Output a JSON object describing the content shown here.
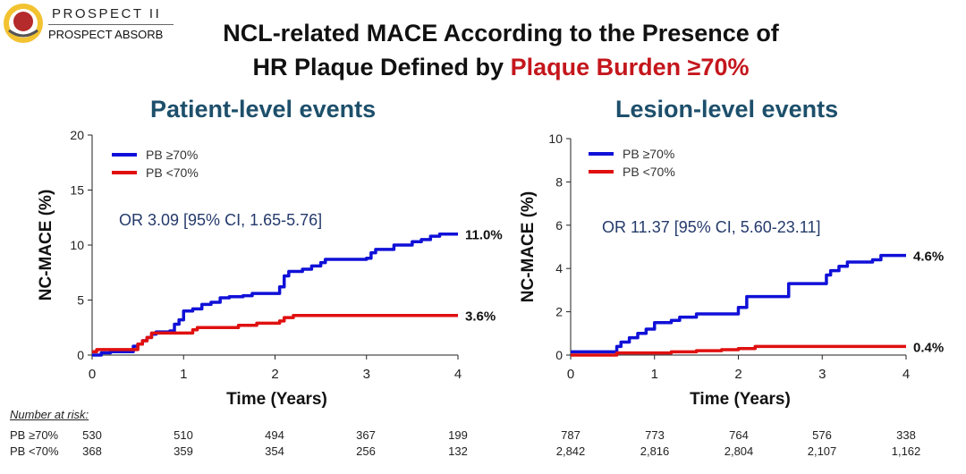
{
  "header": {
    "logo_line1": "PROSPECT II",
    "logo_line2": "PROSPECT ABSORB",
    "title_line1": "NCL-related MACE According to the Presence of",
    "title_line2_prefix": "HR Plaque Defined by ",
    "title_line2_highlight": "Plaque Burden ≥70%"
  },
  "colors": {
    "series_high": "#1010d8",
    "series_low": "#e01010",
    "panel_title": "#1d4f6b",
    "highlight": "#c4161c"
  },
  "chart_data": [
    {
      "type": "line",
      "panel_title": "Patient-level events",
      "xlabel": "Time (Years)",
      "ylabel": "NC-MACE (%)",
      "xlim": [
        0,
        4
      ],
      "ylim": [
        0,
        20
      ],
      "xticks": [
        "0",
        "1",
        "2",
        "3",
        "4"
      ],
      "yticks": [
        "0",
        "5",
        "10",
        "15",
        "20"
      ],
      "annotation": "OR 3.09 [95% CI, 1.65-5.76]",
      "legend_position": "top-left",
      "series": [
        {
          "name": "PB ≥70%",
          "end_label": "11.0%",
          "points": [
            [
              0,
              0
            ],
            [
              0.1,
              0.2
            ],
            [
              0.2,
              0.3
            ],
            [
              0.4,
              0.3
            ],
            [
              0.45,
              0.8
            ],
            [
              0.5,
              1.0
            ],
            [
              0.55,
              1.3
            ],
            [
              0.6,
              1.6
            ],
            [
              0.65,
              1.9
            ],
            [
              0.7,
              2.1
            ],
            [
              0.85,
              2.2
            ],
            [
              0.9,
              2.8
            ],
            [
              0.95,
              3.2
            ],
            [
              1.0,
              4.0
            ],
            [
              1.1,
              4.2
            ],
            [
              1.2,
              4.6
            ],
            [
              1.3,
              4.8
            ],
            [
              1.4,
              5.2
            ],
            [
              1.5,
              5.3
            ],
            [
              1.65,
              5.4
            ],
            [
              1.75,
              5.6
            ],
            [
              2.0,
              5.6
            ],
            [
              2.05,
              6.2
            ],
            [
              2.1,
              7.2
            ],
            [
              2.15,
              7.6
            ],
            [
              2.3,
              7.8
            ],
            [
              2.4,
              8.1
            ],
            [
              2.5,
              8.4
            ],
            [
              2.55,
              8.7
            ],
            [
              2.8,
              8.7
            ],
            [
              3.0,
              8.8
            ],
            [
              3.05,
              9.3
            ],
            [
              3.1,
              9.6
            ],
            [
              3.3,
              10.0
            ],
            [
              3.5,
              10.3
            ],
            [
              3.6,
              10.5
            ],
            [
              3.7,
              10.8
            ],
            [
              3.8,
              11.0
            ],
            [
              4.0,
              11.0
            ]
          ]
        },
        {
          "name": "PB <70%",
          "end_label": "3.6%",
          "points": [
            [
              0,
              0.3
            ],
            [
              0.05,
              0.5
            ],
            [
              0.45,
              0.5
            ],
            [
              0.5,
              1.0
            ],
            [
              0.55,
              1.3
            ],
            [
              0.6,
              1.6
            ],
            [
              0.65,
              2.0
            ],
            [
              0.85,
              2.0
            ],
            [
              1.05,
              2.0
            ],
            [
              1.1,
              2.3
            ],
            [
              1.15,
              2.5
            ],
            [
              1.5,
              2.5
            ],
            [
              1.6,
              2.7
            ],
            [
              1.8,
              2.9
            ],
            [
              2.0,
              2.9
            ],
            [
              2.05,
              3.1
            ],
            [
              2.1,
              3.4
            ],
            [
              2.2,
              3.6
            ],
            [
              4.0,
              3.6
            ]
          ]
        }
      ],
      "number_at_risk": {
        "label": "Number at risk",
        "rows": [
          {
            "name": "PB ≥70%",
            "values": [
              "530",
              "510",
              "494",
              "367",
              "199"
            ]
          },
          {
            "name": "PB <70%",
            "values": [
              "368",
              "359",
              "354",
              "256",
              "132"
            ]
          }
        ]
      }
    },
    {
      "type": "line",
      "panel_title": "Lesion-level events",
      "xlabel": "Time (Years)",
      "ylabel": "NC-MACE (%)",
      "xlim": [
        0,
        4
      ],
      "ylim": [
        0,
        10
      ],
      "xticks": [
        "0",
        "1",
        "2",
        "3",
        "4"
      ],
      "yticks": [
        "0",
        "2",
        "4",
        "6",
        "8",
        "10"
      ],
      "annotation": "OR 11.37 [95% CI, 5.60-23.11]",
      "legend_position": "top-left",
      "series": [
        {
          "name": "PB ≥70%",
          "end_label": "4.6%",
          "points": [
            [
              0,
              0.15
            ],
            [
              0.5,
              0.15
            ],
            [
              0.55,
              0.4
            ],
            [
              0.6,
              0.6
            ],
            [
              0.7,
              0.8
            ],
            [
              0.8,
              1.0
            ],
            [
              0.9,
              1.2
            ],
            [
              1.0,
              1.5
            ],
            [
              1.2,
              1.6
            ],
            [
              1.3,
              1.75
            ],
            [
              1.5,
              1.9
            ],
            [
              1.95,
              1.9
            ],
            [
              2.0,
              2.2
            ],
            [
              2.1,
              2.7
            ],
            [
              2.5,
              2.7
            ],
            [
              2.6,
              3.3
            ],
            [
              3.0,
              3.3
            ],
            [
              3.05,
              3.7
            ],
            [
              3.1,
              3.9
            ],
            [
              3.2,
              4.1
            ],
            [
              3.3,
              4.3
            ],
            [
              3.6,
              4.4
            ],
            [
              3.7,
              4.6
            ],
            [
              4.0,
              4.6
            ]
          ]
        },
        {
          "name": "PB <70%",
          "end_label": "0.4%",
          "points": [
            [
              0,
              0
            ],
            [
              0.5,
              0
            ],
            [
              0.55,
              0.1
            ],
            [
              1.0,
              0.1
            ],
            [
              1.2,
              0.15
            ],
            [
              1.5,
              0.2
            ],
            [
              1.8,
              0.25
            ],
            [
              2.0,
              0.3
            ],
            [
              2.2,
              0.4
            ],
            [
              4.0,
              0.4
            ]
          ]
        }
      ],
      "number_at_risk": {
        "rows": [
          {
            "values": [
              "787",
              "773",
              "764",
              "576",
              "338"
            ]
          },
          {
            "values": [
              "2,842",
              "2,816",
              "2,804",
              "2,107",
              "1,162"
            ]
          }
        ]
      }
    }
  ]
}
